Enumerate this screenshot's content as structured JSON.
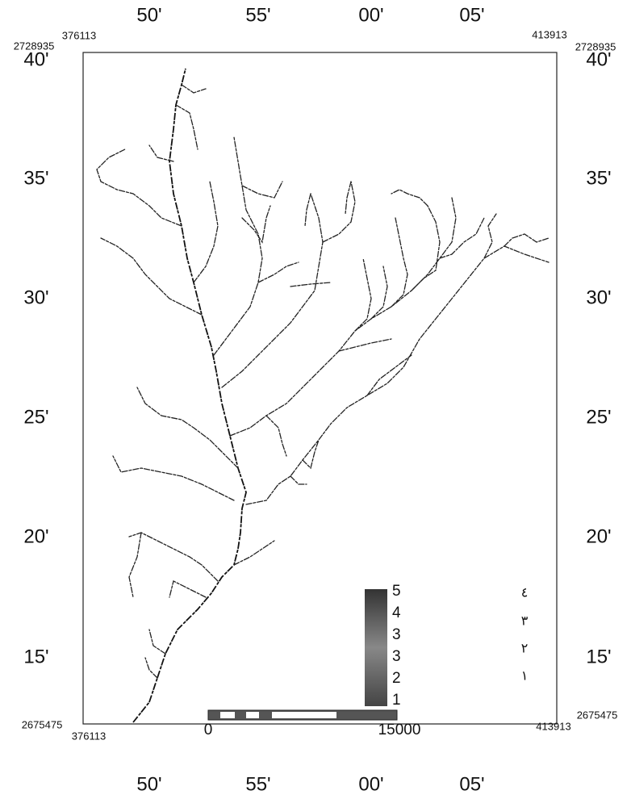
{
  "top_labels": [
    "50'",
    "55'",
    "00'",
    "05'"
  ],
  "bottom_labels": [
    "50'",
    "55'",
    "00'",
    "05'"
  ],
  "left_labels": [
    "40'",
    "35'",
    "30'",
    "25'",
    "20'",
    "15'"
  ],
  "right_labels": [
    "40'",
    "35'",
    "30'",
    "25'",
    "20'",
    "15'"
  ],
  "corners": {
    "top_left": {
      "easting": "376113",
      "northing": "2728935"
    },
    "top_right": {
      "easting": "413913",
      "northing": "2728935"
    },
    "bottom_left": {
      "easting": "376113",
      "northing": "2675475"
    },
    "bottom_right": {
      "easting": "413913",
      "northing": "2675475"
    }
  },
  "legend": {
    "ramp_labels": [
      "5",
      "4",
      "3",
      "3",
      "2",
      "1"
    ],
    "classes": [
      "٤",
      "٣",
      "٢",
      "١"
    ]
  },
  "scale_bar": {
    "start": "0",
    "end": "15000"
  }
}
